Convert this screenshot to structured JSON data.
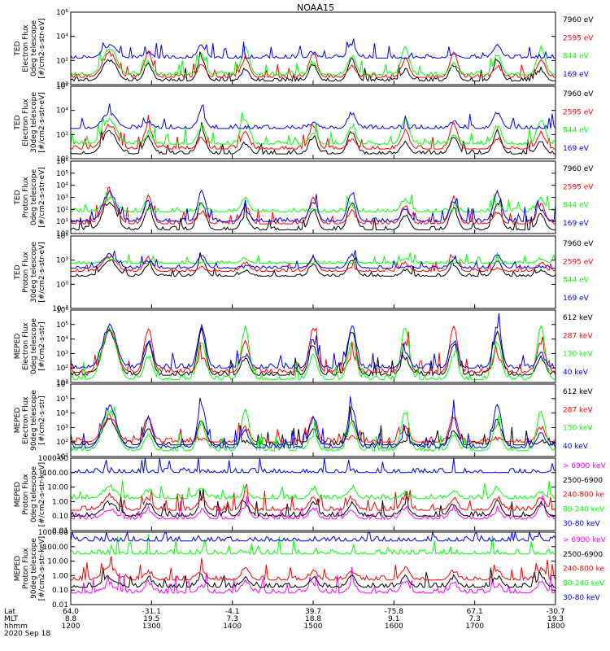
{
  "title": "NOAA15",
  "colors": {
    "blue": "#0000ff",
    "red": "#ff0000",
    "green": "#00ff00",
    "black": "#000000",
    "magenta": "#ff00ff"
  },
  "chart_data": [
    {
      "type": "line",
      "ylabel": [
        "TED",
        "Electron Flux",
        "0deg telescope",
        "[#/cm2-s-str-eV]"
      ],
      "y_scale": "log",
      "ylim": [
        1,
        1000000
      ],
      "y_ticks": [
        "10⁰",
        "10²",
        "10⁴",
        "10⁶"
      ],
      "x_range": [
        1200,
        1800
      ],
      "series": [
        {
          "name": "7960 eV",
          "color": "#000000",
          "peak_exp": 2.1,
          "noise_exp": 0.3
        },
        {
          "name": "2595 eV",
          "color": "#ff0000",
          "peak_exp": 2.6,
          "noise_exp": 0.6
        },
        {
          "name": "844 eV",
          "color": "#00ff00",
          "peak_exp": 3.0,
          "noise_exp": 0.8
        },
        {
          "name": "169 eV",
          "color": "#0000ff",
          "peak_exp": 3.3,
          "noise_exp": 2.2
        }
      ]
    },
    {
      "type": "line",
      "ylabel": [
        "TED",
        "Electron Flux",
        "30deg telescope",
        "[#/cm2-s-str-eV]"
      ],
      "y_scale": "log",
      "ylim": [
        1,
        1000000
      ],
      "y_ticks": [
        "10⁰",
        "10²",
        "10⁴",
        "10⁶"
      ],
      "x_range": [
        1200,
        1800
      ],
      "series": [
        {
          "name": "7960 eV",
          "color": "#000000",
          "peak_exp": 2.3,
          "noise_exp": 0.4
        },
        {
          "name": "2595 eV",
          "color": "#ff0000",
          "peak_exp": 2.8,
          "noise_exp": 0.8
        },
        {
          "name": "844 eV",
          "color": "#00ff00",
          "peak_exp": 3.3,
          "noise_exp": 1.2
        },
        {
          "name": "169 eV",
          "color": "#0000ff",
          "peak_exp": 3.8,
          "noise_exp": 2.5
        }
      ]
    },
    {
      "type": "line",
      "ylabel": [
        "TED",
        "Proton Flux",
        "0deg telescope",
        "[#/cm2-s-str-eV]"
      ],
      "y_scale": "log",
      "ylim": [
        1,
        1000000
      ],
      "y_ticks": [
        "10⁰",
        "10¹",
        "10²",
        "10³",
        "10⁴",
        "10⁵",
        "10⁶"
      ],
      "x_range": [
        1200,
        1800
      ],
      "series": [
        {
          "name": "7960 eV",
          "color": "#000000",
          "peak_exp": 2.6,
          "noise_exp": 0.3
        },
        {
          "name": "2595 eV",
          "color": "#ff0000",
          "peak_exp": 3.0,
          "noise_exp": 0.8
        },
        {
          "name": "844 eV",
          "color": "#00ff00",
          "peak_exp": 2.9,
          "noise_exp": 1.8
        },
        {
          "name": "169 eV",
          "color": "#0000ff",
          "peak_exp": 3.4,
          "noise_exp": 1.0
        }
      ]
    },
    {
      "type": "line",
      "ylabel": [
        "TED",
        "Proton Flux",
        "30deg telescope",
        "[#/cm2-s-str-eV]"
      ],
      "y_scale": "log",
      "ylim": [
        0.001,
        1000000
      ],
      "y_ticks": [
        "10⁻³",
        "10⁰",
        "10³",
        "10⁶"
      ],
      "x_range": [
        1200,
        1800
      ],
      "series": [
        {
          "name": "7960 eV",
          "color": "#000000",
          "peak_exp": 3.0,
          "noise_exp": 1.0
        },
        {
          "name": "2595 eV",
          "color": "#ff0000",
          "peak_exp": 3.4,
          "noise_exp": 1.6
        },
        {
          "name": "844 eV",
          "color": "#00ff00",
          "peak_exp": 3.2,
          "noise_exp": 2.6
        },
        {
          "name": "169 eV",
          "color": "#0000ff",
          "peak_exp": 3.7,
          "noise_exp": 2.0
        }
      ]
    },
    {
      "type": "line",
      "ylabel": [
        "MEPED",
        "Electron Flux",
        "0deg telescope",
        "[#/cm2-s-str]"
      ],
      "y_scale": "log",
      "ylim": [
        10,
        1000000
      ],
      "y_ticks": [
        "10¹",
        "10²",
        "10³",
        "10⁴",
        "10⁵",
        "10⁶"
      ],
      "x_range": [
        1200,
        1800
      ],
      "series": [
        {
          "name": "612 keV",
          "color": "#000000",
          "peak_exp": 4.6,
          "noise_exp": 1.5
        },
        {
          "name": "287 keV",
          "color": "#ff0000",
          "peak_exp": 4.7,
          "noise_exp": 1.7
        },
        {
          "name": "130 keV",
          "color": "#00ff00",
          "peak_exp": 4.8,
          "noise_exp": 1.2
        },
        {
          "name": "40 keV",
          "color": "#0000ff",
          "peak_exp": 4.9,
          "noise_exp": 2.0
        }
      ]
    },
    {
      "type": "line",
      "ylabel": [
        "MEPED",
        "Electron Flux",
        "90deg telescope",
        "[#/cm2-s-str]"
      ],
      "y_scale": "log",
      "ylim": [
        10,
        1000000
      ],
      "y_ticks": [
        "10¹",
        "10²",
        "10³",
        "10⁴",
        "10⁵",
        "10⁶"
      ],
      "x_range": [
        1200,
        1800
      ],
      "series": [
        {
          "name": "612 keV",
          "color": "#000000",
          "peak_exp": 3.5,
          "noise_exp": 1.8
        },
        {
          "name": "287 keV",
          "color": "#ff0000",
          "peak_exp": 3.8,
          "noise_exp": 2.0
        },
        {
          "name": "130 keV",
          "color": "#00ff00",
          "peak_exp": 4.1,
          "noise_exp": 1.4
        },
        {
          "name": "40 keV",
          "color": "#0000ff",
          "peak_exp": 4.5,
          "noise_exp": 1.6
        }
      ]
    },
    {
      "type": "line",
      "ylabel": [
        "MEPED",
        "Proton Flux",
        "0deg telescope",
        "[#/cm2-s-str-keV]"
      ],
      "y_scale": "log",
      "ylim": [
        0.01,
        1000
      ],
      "y_ticks": [
        "0.01",
        "0.10",
        "1.00",
        "10.00",
        "100.00",
        "1000.00"
      ],
      "x_range": [
        1200,
        1800
      ],
      "series": [
        {
          "name": "> 6900 keV",
          "color": "#ff00ff",
          "peak_exp": -0.6,
          "noise_exp": -1.2
        },
        {
          "name": "2500-6900",
          "color": "#000000",
          "peak_exp": -0.1,
          "noise_exp": -1.0
        },
        {
          "name": "240-800 ke",
          "color": "#ff0000",
          "peak_exp": 0.4,
          "noise_exp": -0.6
        },
        {
          "name": "80-240 keV",
          "color": "#00ff00",
          "peak_exp": 1.0,
          "noise_exp": 0.2
        },
        {
          "name": "30-80 keV",
          "color": "#0000ff",
          "peak_exp": 1.6,
          "noise_exp": 2.0
        }
      ]
    },
    {
      "type": "line",
      "ylabel": [
        "MEPED",
        "Proton Flux",
        "90deg telescope",
        "[#/cm2-s-str-keV]"
      ],
      "y_scale": "log",
      "ylim": [
        0.01,
        1000
      ],
      "y_ticks": [
        "0.01",
        "0.10",
        "1.00",
        "10.00",
        "100.00",
        "1000.00"
      ],
      "x_range": [
        1200,
        1800
      ],
      "series": [
        {
          "name": "> 6900 keV",
          "color": "#ff00ff",
          "peak_exp": -0.6,
          "noise_exp": -1.2
        },
        {
          "name": "2500-6900",
          "color": "#000000",
          "peak_exp": -0.1,
          "noise_exp": -0.8
        },
        {
          "name": "240-800 ke",
          "color": "#ff0000",
          "peak_exp": 0.5,
          "noise_exp": -0.3
        },
        {
          "name": "80-240 keV",
          "color": "#00ff00",
          "peak_exp": 1.1,
          "noise_exp": 1.5
        },
        {
          "name": "30-80 keV",
          "color": "#0000ff",
          "peak_exp": 1.8,
          "noise_exp": 2.4
        }
      ]
    }
  ],
  "x_axis": {
    "row_labels": [
      "Lat",
      "MLT",
      "hhmm"
    ],
    "ticks": [
      {
        "Lat": "64.0",
        "MLT": "8.8",
        "hhmm": "1200"
      },
      {
        "Lat": "-31.1",
        "MLT": "19.5",
        "hhmm": "1300"
      },
      {
        "Lat": "-4.1",
        "MLT": "7.3",
        "hhmm": "1400"
      },
      {
        "Lat": "39.7",
        "MLT": "18.8",
        "hhmm": "1500"
      },
      {
        "Lat": "-75.8",
        "MLT": "9.1",
        "hhmm": "1600"
      },
      {
        "Lat": "67.1",
        "MLT": "7.3",
        "hhmm": "1700"
      },
      {
        "Lat": "-30.7",
        "MLT": "19.3",
        "hhmm": "1800"
      }
    ],
    "date": "2020 Sep 18"
  }
}
